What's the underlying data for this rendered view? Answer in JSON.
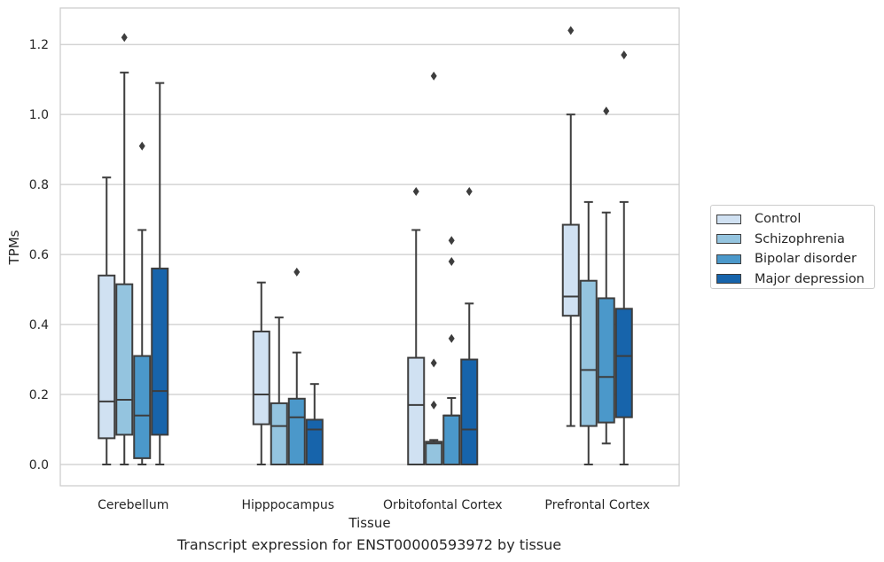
{
  "caption": "Transcript expression for ENST00000593972 by tissue",
  "chart_data": {
    "type": "boxplot",
    "title": "",
    "xlabel": "Tissue",
    "ylabel": "TPMs",
    "ylim": [
      -0.06,
      1.3
    ],
    "yticks": [
      "0.0",
      "0.2",
      "0.4",
      "0.6",
      "0.8",
      "1.0",
      "1.2"
    ],
    "categories": [
      "Cerebellum",
      "Hipppocampus",
      "Orbitofontal Cortex",
      "Prefrontal Cortex"
    ],
    "grid": "horizontal",
    "legend_position": "right",
    "series": [
      {
        "name": "Control",
        "color": "#d0e1f2",
        "boxes": [
          {
            "whislo": 0.0,
            "q1": 0.075,
            "med": 0.18,
            "q3": 0.54,
            "whishi": 0.82,
            "fliers": []
          },
          {
            "whislo": 0.0,
            "q1": 0.115,
            "med": 0.2,
            "q3": 0.38,
            "whishi": 0.52,
            "fliers": []
          },
          {
            "whislo": 0.0,
            "q1": 0.0,
            "med": 0.17,
            "q3": 0.305,
            "whishi": 0.67,
            "fliers": [
              0.78
            ]
          },
          {
            "whislo": 0.11,
            "q1": 0.425,
            "med": 0.48,
            "q3": 0.685,
            "whishi": 1.0,
            "fliers": [
              1.24
            ]
          }
        ]
      },
      {
        "name": "Schizophrenia",
        "color": "#94c4df",
        "boxes": [
          {
            "whislo": 0.0,
            "q1": 0.085,
            "med": 0.185,
            "q3": 0.515,
            "whishi": 1.12,
            "fliers": [
              1.22
            ]
          },
          {
            "whislo": 0.0,
            "q1": 0.0,
            "med": 0.11,
            "q3": 0.175,
            "whishi": 0.42,
            "fliers": []
          },
          {
            "whislo": 0.0,
            "q1": 0.0,
            "med": 0.06,
            "q3": 0.065,
            "whishi": 0.07,
            "fliers": [
              0.17,
              0.29,
              1.11
            ]
          },
          {
            "whislo": 0.0,
            "q1": 0.11,
            "med": 0.27,
            "q3": 0.525,
            "whishi": 0.75,
            "fliers": []
          }
        ]
      },
      {
        "name": "Bipolar disorder",
        "color": "#4b98ca",
        "boxes": [
          {
            "whislo": 0.0,
            "q1": 0.018,
            "med": 0.14,
            "q3": 0.31,
            "whishi": 0.67,
            "fliers": [
              0.91
            ]
          },
          {
            "whislo": 0.0,
            "q1": 0.0,
            "med": 0.135,
            "q3": 0.188,
            "whishi": 0.32,
            "fliers": [
              0.55
            ]
          },
          {
            "whislo": 0.0,
            "q1": 0.0,
            "med": 0.14,
            "q3": 0.14,
            "whishi": 0.19,
            "fliers": [
              0.36,
              0.58,
              0.64
            ]
          },
          {
            "whislo": 0.06,
            "q1": 0.12,
            "med": 0.25,
            "q3": 0.475,
            "whishi": 0.72,
            "fliers": [
              1.01
            ]
          }
        ]
      },
      {
        "name": "Major depression",
        "color": "#1764ab",
        "boxes": [
          {
            "whislo": 0.0,
            "q1": 0.085,
            "med": 0.21,
            "q3": 0.56,
            "whishi": 1.09,
            "fliers": []
          },
          {
            "whislo": 0.0,
            "q1": 0.0,
            "med": 0.1,
            "q3": 0.128,
            "whishi": 0.23,
            "fliers": []
          },
          {
            "whislo": 0.0,
            "q1": 0.0,
            "med": 0.1,
            "q3": 0.3,
            "whishi": 0.46,
            "fliers": [
              0.78
            ]
          },
          {
            "whislo": 0.0,
            "q1": 0.135,
            "med": 0.31,
            "q3": 0.445,
            "whishi": 0.75,
            "fliers": [
              1.17
            ]
          }
        ]
      }
    ]
  }
}
